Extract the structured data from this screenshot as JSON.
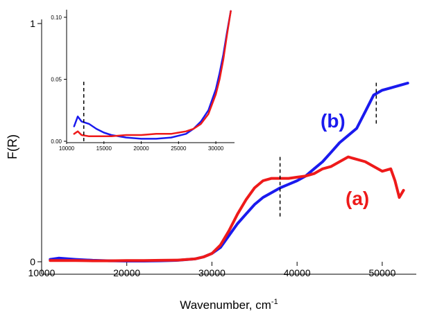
{
  "chart_data": [
    {
      "type": "line",
      "title": "",
      "xlabel": "Wavenumber, cm",
      "xlabel_superscript": "-1",
      "ylabel": "F(R)",
      "xlim": [
        10000,
        54000
      ],
      "ylim": [
        0,
        1
      ],
      "xticks": [
        "10000",
        "20000",
        "30000",
        "40000",
        "50000"
      ],
      "yticks": [
        "0",
        "1"
      ],
      "grid": false,
      "series": [
        {
          "name": "(b)",
          "color": "#1a1aee",
          "x": [
            11000,
            12000,
            14000,
            16000,
            18000,
            20000,
            22000,
            24000,
            26000,
            28000,
            29000,
            30000,
            31000,
            32000,
            33000,
            34000,
            35000,
            36000,
            37000,
            38000,
            39000,
            40000,
            41000,
            42000,
            43000,
            44000,
            45000,
            46000,
            47000,
            48000,
            49000,
            50000,
            51000,
            52000,
            53000
          ],
          "y": [
            0.01,
            0.015,
            0.01,
            0.006,
            0.004,
            0.003,
            0.003,
            0.004,
            0.006,
            0.012,
            0.02,
            0.035,
            0.06,
            0.11,
            0.16,
            0.2,
            0.24,
            0.27,
            0.29,
            0.31,
            0.325,
            0.34,
            0.36,
            0.39,
            0.42,
            0.46,
            0.5,
            0.53,
            0.56,
            0.63,
            0.7,
            0.72,
            0.73,
            0.74,
            0.75
          ]
        },
        {
          "name": "(a)",
          "color": "#ee1a1a",
          "x": [
            11000,
            12000,
            14000,
            16000,
            18000,
            20000,
            22000,
            24000,
            26000,
            28000,
            29000,
            30000,
            31000,
            32000,
            33000,
            34000,
            35000,
            36000,
            37000,
            38000,
            39000,
            40000,
            41000,
            42000,
            43000,
            44000,
            45000,
            46000,
            47000,
            48000,
            49000,
            50000,
            51000,
            51500,
            52000,
            52500
          ],
          "y": [
            0.005,
            0.005,
            0.005,
            0.004,
            0.004,
            0.005,
            0.005,
            0.006,
            0.007,
            0.012,
            0.02,
            0.035,
            0.07,
            0.13,
            0.2,
            0.26,
            0.31,
            0.34,
            0.35,
            0.35,
            0.35,
            0.355,
            0.36,
            0.37,
            0.39,
            0.4,
            0.42,
            0.44,
            0.43,
            0.42,
            0.4,
            0.38,
            0.39,
            0.34,
            0.27,
            0.3
          ]
        }
      ],
      "annotations": [
        "(a)",
        "(b)"
      ],
      "markers": [
        {
          "type": "dashed-vline",
          "x": 38000,
          "y_range": [
            0.19,
            0.44
          ]
        },
        {
          "type": "dashed-vline",
          "x": 49300,
          "y_range": [
            0.58,
            0.76
          ]
        }
      ]
    },
    {
      "type": "line",
      "title": "",
      "xlabel": "",
      "ylabel": "",
      "xlim": [
        10000,
        32500
      ],
      "ylim": [
        0,
        0.105
      ],
      "xticks": [
        "10000",
        "15000",
        "20000",
        "25000",
        "30000"
      ],
      "yticks": [
        "0.00",
        "0.05",
        "0.10"
      ],
      "grid": false,
      "series": [
        {
          "name": "",
          "color": "#1a1aee",
          "x": [
            11000,
            11500,
            12000,
            13000,
            14000,
            15000,
            16000,
            18000,
            20000,
            22000,
            24000,
            26000,
            27000,
            28000,
            29000,
            30000,
            30500,
            31000,
            31500,
            32000
          ],
          "y": [
            0.012,
            0.02,
            0.016,
            0.014,
            0.01,
            0.007,
            0.005,
            0.003,
            0.002,
            0.002,
            0.003,
            0.006,
            0.01,
            0.016,
            0.025,
            0.042,
            0.055,
            0.07,
            0.088,
            0.105
          ]
        },
        {
          "name": "",
          "color": "#ee1a1a",
          "x": [
            11000,
            11500,
            12000,
            13000,
            14000,
            15000,
            16000,
            18000,
            20000,
            22000,
            24000,
            26000,
            27000,
            28000,
            29000,
            30000,
            30500,
            31000,
            31500,
            32000
          ],
          "y": [
            0.006,
            0.008,
            0.005,
            0.004,
            0.004,
            0.004,
            0.004,
            0.005,
            0.005,
            0.006,
            0.006,
            0.008,
            0.01,
            0.014,
            0.022,
            0.038,
            0.05,
            0.066,
            0.086,
            0.105
          ]
        }
      ],
      "markers": [
        {
          "type": "dashed-vline",
          "x": 12300,
          "y_range": [
            0.0,
            0.05
          ]
        }
      ]
    }
  ]
}
